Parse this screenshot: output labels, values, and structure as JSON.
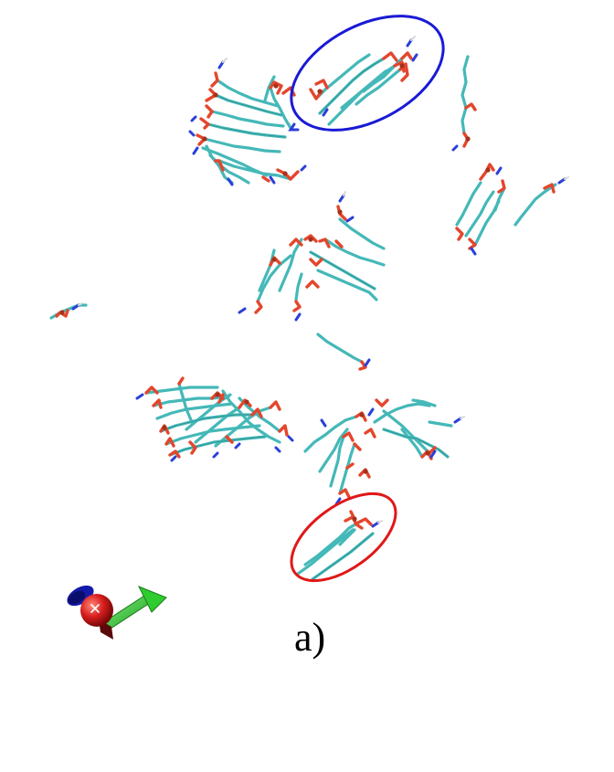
{
  "figure": {
    "panel_label": "a)"
  },
  "colors": {
    "background": "#ffffff",
    "lipid_tail": "#45b8b8",
    "lipid_tail_dark": "#2a8d8d",
    "oxygen": "#e4462c",
    "oxygen_dark": "#a4321c",
    "nitrogen": "#2b3fd8",
    "highlight_blue": "#1a1ad6",
    "highlight_red": "#e01818",
    "axis_x": "#c71c1c",
    "axis_y": "#2fb82f",
    "axis_z": "#1d1dc8"
  },
  "icons": {
    "orientation": "xyz-axes-icon"
  }
}
